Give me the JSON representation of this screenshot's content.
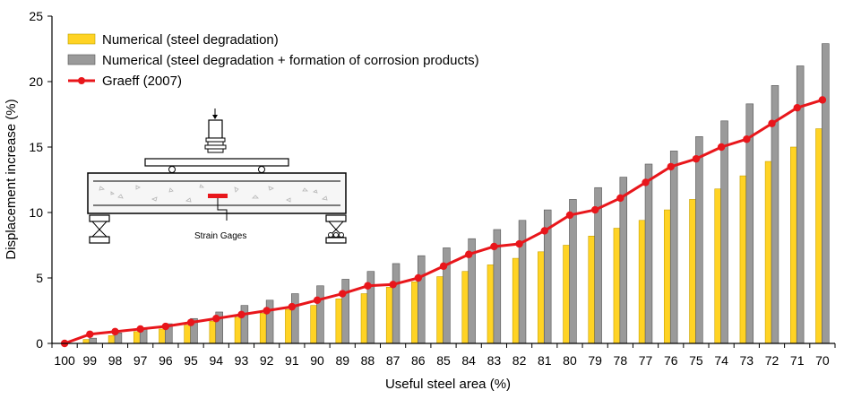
{
  "chart_data": {
    "type": "bar",
    "title": "",
    "xlabel": "Useful steel area (%)",
    "ylabel": "Displacement increase (%)",
    "ylim": [
      0,
      25
    ],
    "yticks": [
      0,
      5,
      10,
      15,
      20,
      25
    ],
    "grid": false,
    "legend_position": "top-left",
    "categories": [
      "100",
      "99",
      "98",
      "97",
      "96",
      "95",
      "94",
      "93",
      "92",
      "91",
      "90",
      "89",
      "88",
      "87",
      "86",
      "85",
      "84",
      "83",
      "82",
      "81",
      "80",
      "79",
      "78",
      "77",
      "76",
      "75",
      "74",
      "73",
      "72",
      "71",
      "70"
    ],
    "series": [
      {
        "name": "Numerical (steel degradation)",
        "kind": "bar",
        "color": "#FFD324",
        "values": [
          0,
          0.3,
          0.6,
          0.9,
          1.1,
          1.4,
          1.7,
          2.0,
          2.3,
          2.6,
          2.9,
          3.4,
          3.8,
          4.3,
          4.7,
          5.1,
          5.5,
          6.0,
          6.5,
          7.0,
          7.5,
          8.2,
          8.8,
          9.4,
          10.2,
          11.0,
          11.8,
          12.8,
          13.9,
          15.0,
          16.4
        ]
      },
      {
        "name": "Numerical (steel degradation + formation of corrosion products)",
        "kind": "bar",
        "color": "#9A9A9A",
        "values": [
          0,
          0.4,
          0.8,
          1.1,
          1.5,
          1.9,
          2.4,
          2.9,
          3.3,
          3.8,
          4.4,
          4.9,
          5.5,
          6.1,
          6.7,
          7.3,
          8.0,
          8.7,
          9.4,
          10.2,
          11.0,
          11.9,
          12.7,
          13.7,
          14.7,
          15.8,
          17.0,
          18.3,
          19.7,
          21.2,
          22.9
        ]
      },
      {
        "name": "Graeff (2007)",
        "kind": "line",
        "color": "#E8161B",
        "values": [
          0,
          0.7,
          0.9,
          1.1,
          1.3,
          1.6,
          1.9,
          2.2,
          2.5,
          2.8,
          3.3,
          3.8,
          4.4,
          4.5,
          5.0,
          5.9,
          6.8,
          7.4,
          7.6,
          8.6,
          9.8,
          10.2,
          11.1,
          12.3,
          13.5,
          14.1,
          15.0,
          15.6,
          16.8,
          18.0,
          18.6
        ]
      }
    ],
    "inset_annotation": "Strain Gages"
  }
}
